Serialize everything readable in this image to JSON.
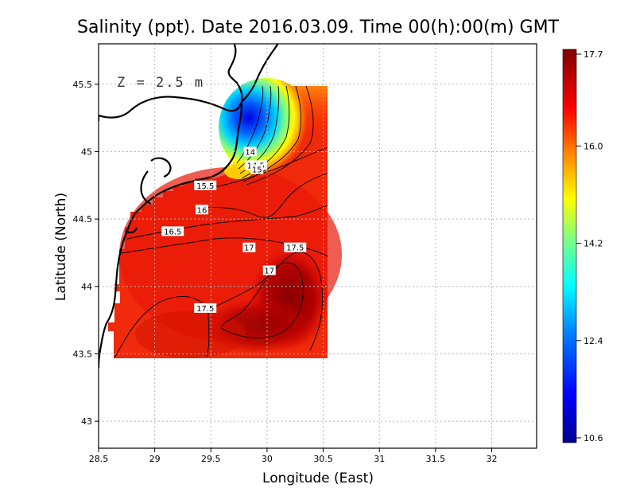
{
  "title": "Salinity (ppt). Date 2016.03.09. Time 00(h):00(m) GMT",
  "depth_label": "Z = 2.5 m",
  "chart_data": {
    "type": "heatmap",
    "title": "Salinity (ppt). Date 2016.03.09. Time 00(h):00(m) GMT",
    "xlabel": "Longitude (East)",
    "ylabel": "Latitude (North)",
    "xlim": [
      28.5,
      32.4
    ],
    "ylim": [
      42.8,
      45.8
    ],
    "x_ticks": [
      28.5,
      29,
      29.5,
      30,
      30.5,
      31,
      31.5,
      32
    ],
    "y_ticks": [
      43,
      43.5,
      44,
      44.5,
      45,
      45.5
    ],
    "x_tick_labels": [
      "28.5",
      "29",
      "29.5",
      "30",
      "30.5",
      "31",
      "31.5",
      "32"
    ],
    "y_tick_labels": [
      "43",
      "43.5",
      "44",
      "44.5",
      "45",
      "45.5"
    ],
    "grid": true,
    "colorbar": {
      "min": 10.6,
      "max": 17.7,
      "tick_values": [
        17.7,
        16.0,
        14.2,
        12.4,
        10.6
      ],
      "tick_labels": [
        "17.7",
        "16.0",
        "14.2",
        "12.4",
        "10.6"
      ],
      "colormap": [
        "#00008f",
        "#0000ff",
        "#0080ff",
        "#00ffff",
        "#80ff80",
        "#ffff00",
        "#ff8000",
        "#ff0000",
        "#800000"
      ]
    },
    "contour_labels": [
      {
        "text": "14",
        "lon": 29.85,
        "lat": 45.0
      },
      {
        "text": "14.5",
        "lon": 29.9,
        "lat": 44.9
      },
      {
        "text": "15",
        "lon": 29.91,
        "lat": 44.87
      },
      {
        "text": "15.5",
        "lon": 29.45,
        "lat": 44.75
      },
      {
        "text": "16",
        "lon": 29.42,
        "lat": 44.57
      },
      {
        "text": "16.5",
        "lon": 29.16,
        "lat": 44.41
      },
      {
        "text": "17",
        "lon": 29.84,
        "lat": 44.29
      },
      {
        "text": "17.5",
        "lon": 30.25,
        "lat": 44.29
      },
      {
        "text": "17",
        "lon": 30.02,
        "lat": 44.12
      },
      {
        "text": "17.5",
        "lon": 29.45,
        "lat": 43.84
      }
    ]
  }
}
